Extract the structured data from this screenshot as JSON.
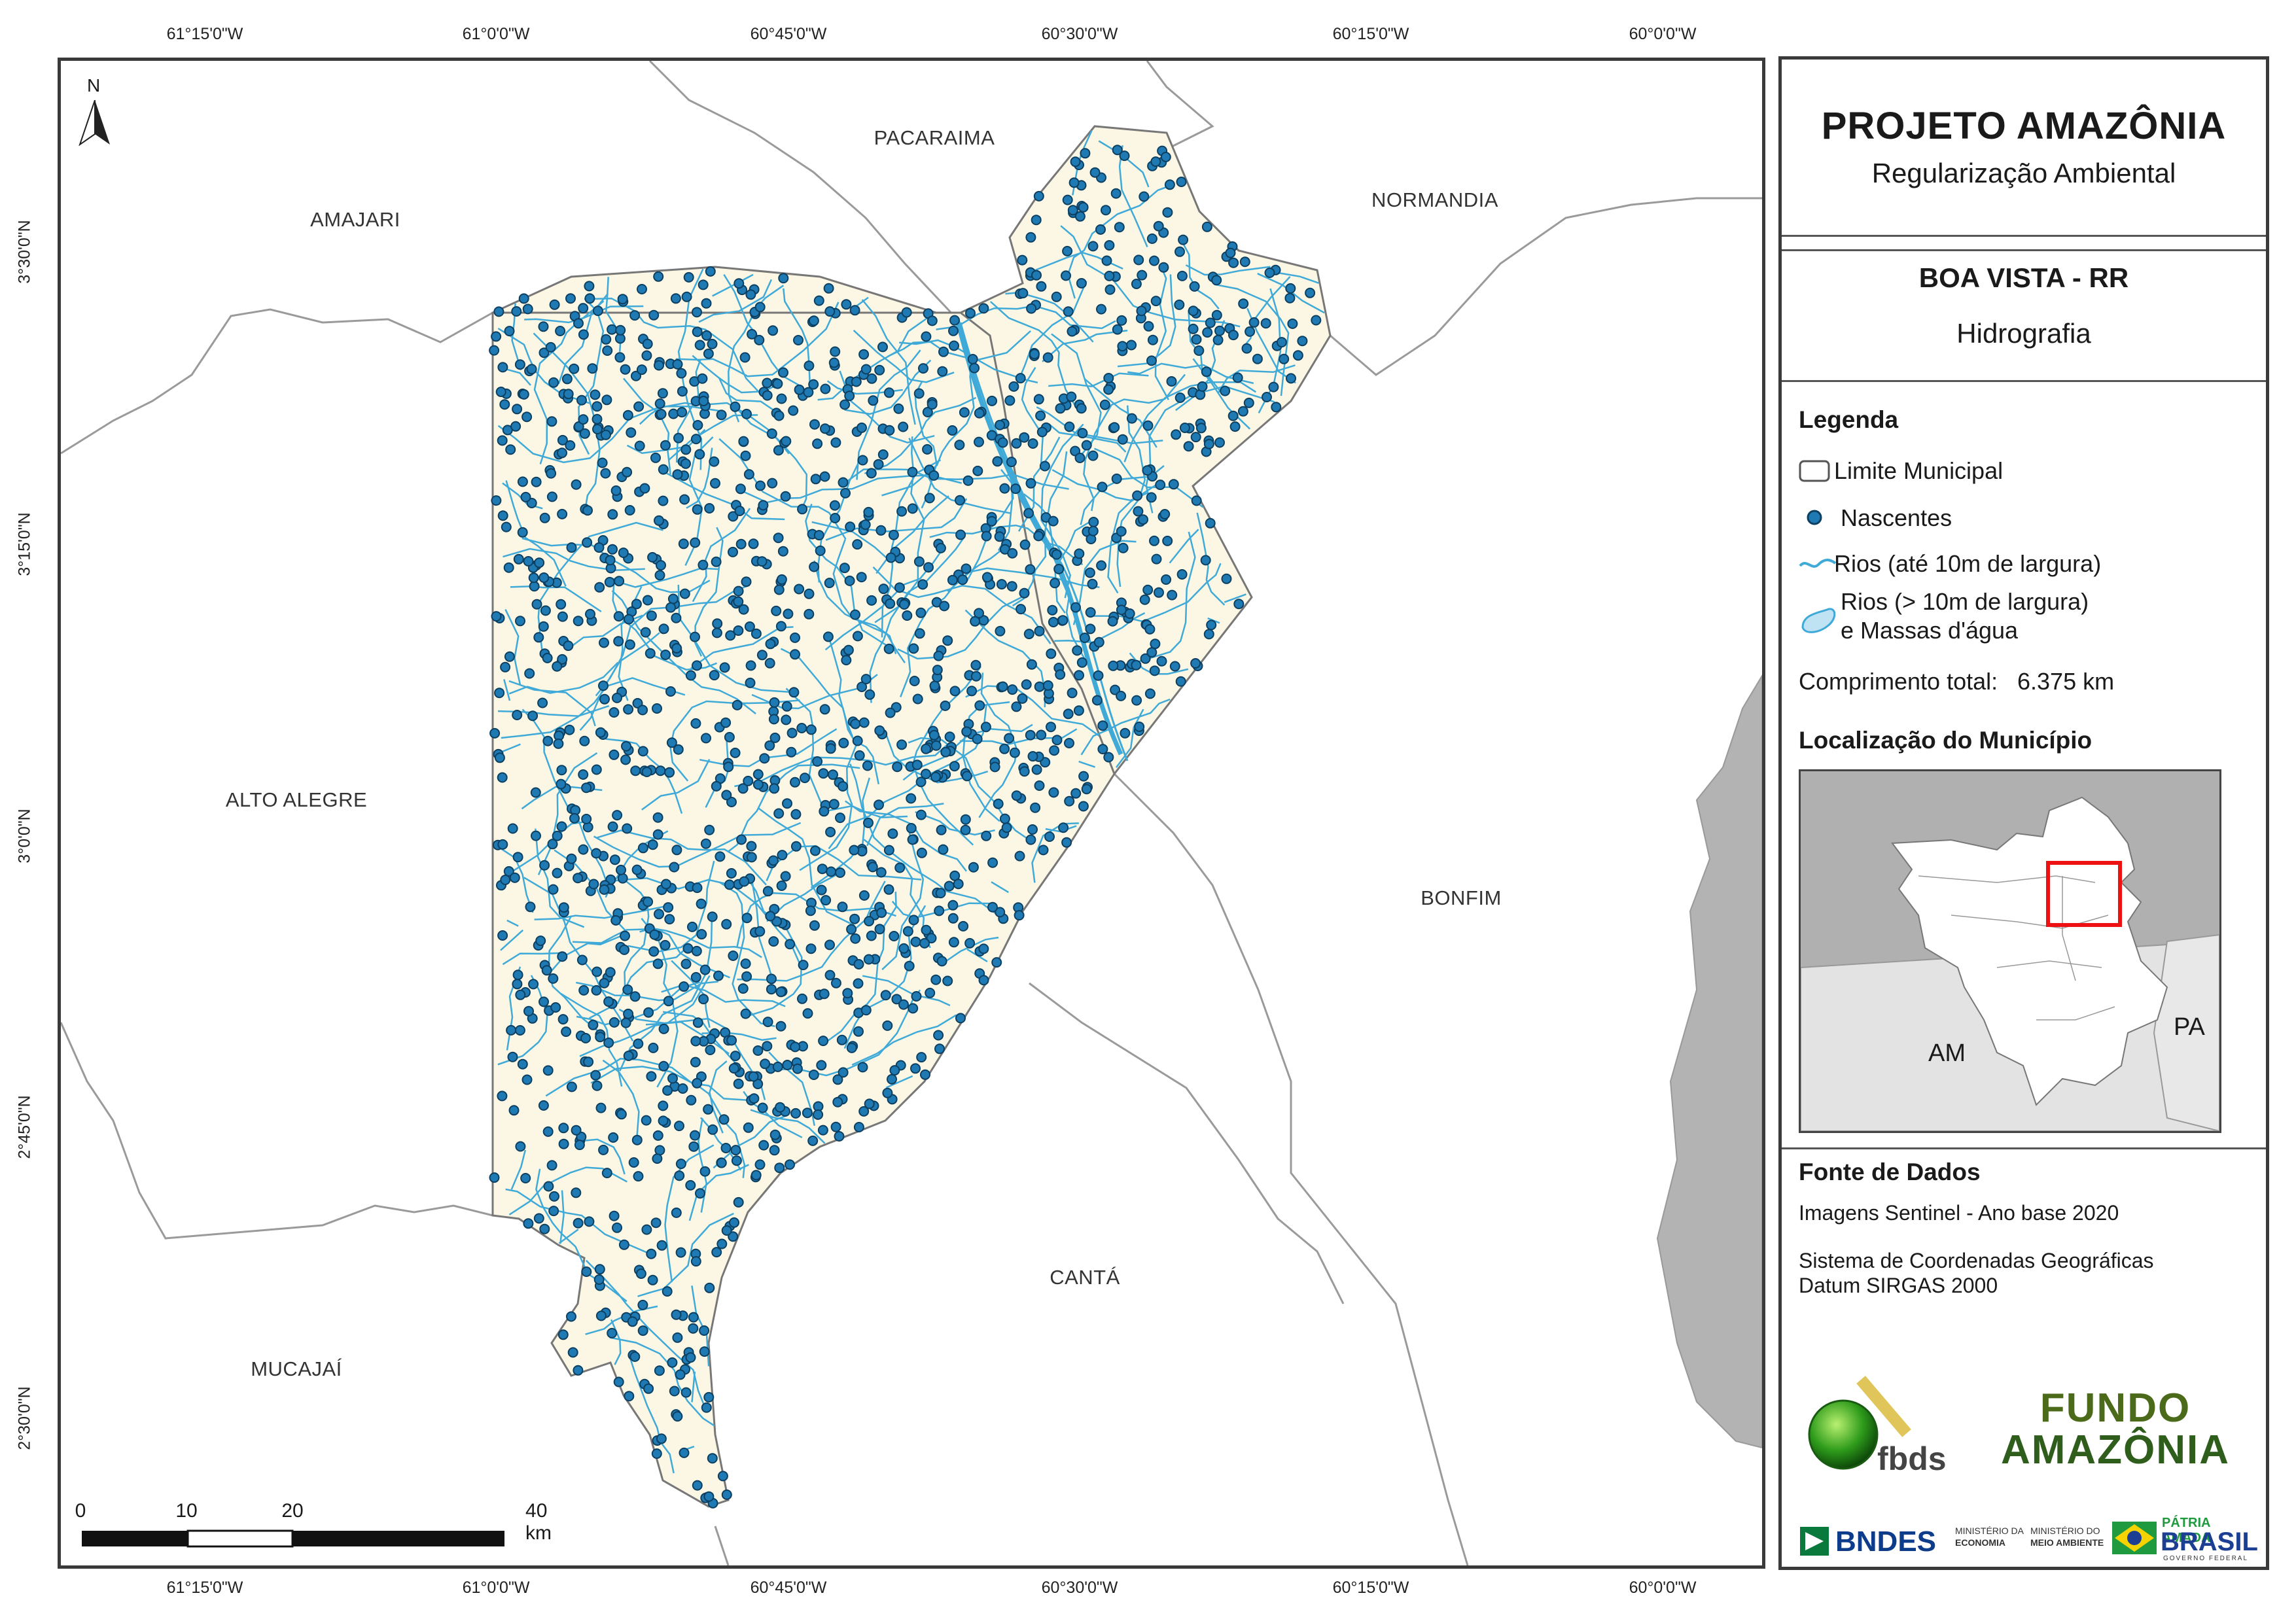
{
  "map": {
    "graticule": {
      "longitudes": [
        "61°15'0\"W",
        "61°0'0\"W",
        "60°45'0\"W",
        "60°30'0\"W",
        "60°15'0\"W",
        "60°0'0\"W"
      ],
      "latitudes": [
        "3°30'0\"N",
        "3°15'0\"N",
        "3°0'0\"N",
        "2°45'0\"N",
        "2°30'0\"N"
      ]
    },
    "municipalities": [
      "PACARAIMA",
      "AMAJARI",
      "NORMANDIA",
      "ALTO ALEGRE",
      "BONFIM",
      "CANTÁ",
      "MUCAJAÍ"
    ],
    "north_arrow": "N",
    "scale_bar": {
      "ticks": [
        "0",
        "10",
        "20",
        "40 km"
      ]
    },
    "colors": {
      "municipality_fill": "#fbf7e4",
      "rivers": "#3fa9d8",
      "springs": "#1f7ab3",
      "outside_state": "#b3b3b3",
      "boundaries": "#9a9a9a"
    }
  },
  "panel": {
    "title": "PROJETO AMAZÔNIA",
    "subtitle": "Regularização Ambiental",
    "municipality": "BOA VISTA - RR",
    "theme": "Hidrografia",
    "legend": {
      "heading": "Legenda",
      "items": [
        "Limite Municipal",
        "Nascentes",
        "Rios (até 10m de largura)",
        "Rios (> 10m de largura)",
        "e Massas d'água"
      ],
      "length_label": "Comprimento total:",
      "length_value": "6.375 km"
    },
    "location": {
      "heading": "Localização do Município",
      "labels": [
        "AM",
        "PA"
      ]
    },
    "sources": {
      "heading": "Fonte de Dados",
      "lines": [
        "Imagens Sentinel - Ano base 2020",
        "Sistema de Coordenadas Geográficas",
        "Datum SIRGAS 2000"
      ]
    },
    "logos": {
      "fbds": "fbds",
      "fundo_1": "FUNDO",
      "fundo_2": "AMAZÔNIA",
      "bndes": "BNDES",
      "min_economia_1": "MINISTÉRIO DA",
      "min_economia_2": "ECONOMIA",
      "min_ambiente_1": "MINISTÉRIO DO",
      "min_ambiente_2": "MEIO AMBIENTE",
      "patria": "PÁTRIA AMADA",
      "brasil": "BRASIL",
      "governo": "GOVERNO FEDERAL"
    }
  }
}
